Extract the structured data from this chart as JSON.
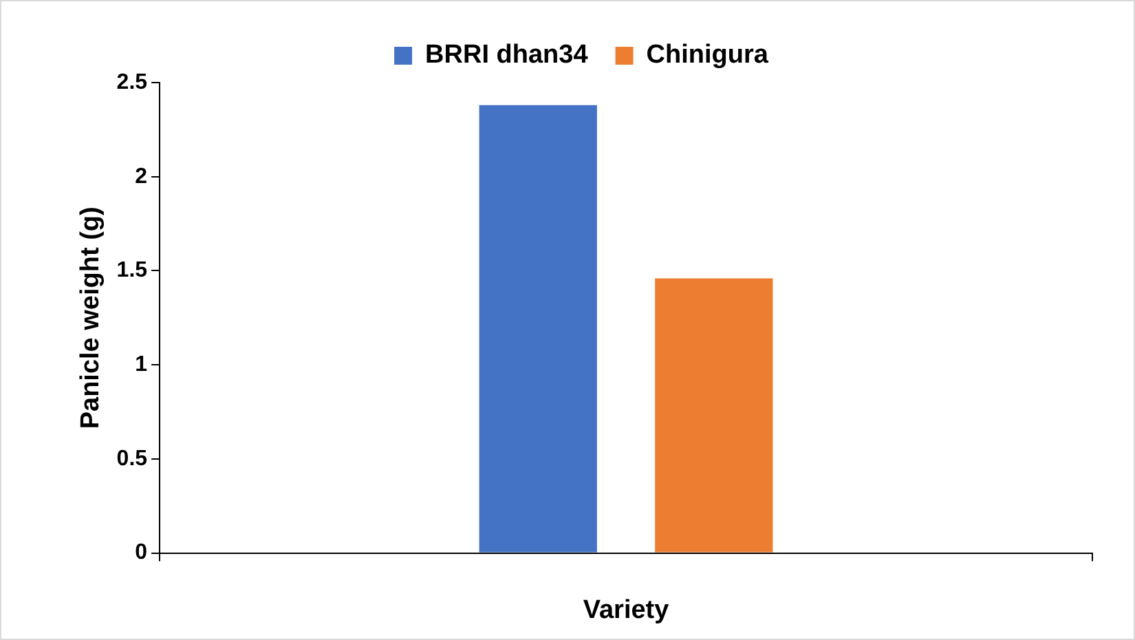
{
  "chart_data": {
    "type": "bar",
    "xlabel": "Variety",
    "ylabel": "Panicle weight (g)",
    "categories": [
      null
    ],
    "series": [
      {
        "name": "BRRI dhan34",
        "color": "#4472c4",
        "values": [
          2.38
        ]
      },
      {
        "name": "Chinigura",
        "color": "#ed7d31",
        "values": [
          1.46
        ]
      }
    ],
    "ylim": [
      0,
      2.5
    ],
    "yticks": [
      0,
      0.5,
      1,
      1.5,
      2,
      2.5
    ],
    "grid": false,
    "legend": "top"
  }
}
